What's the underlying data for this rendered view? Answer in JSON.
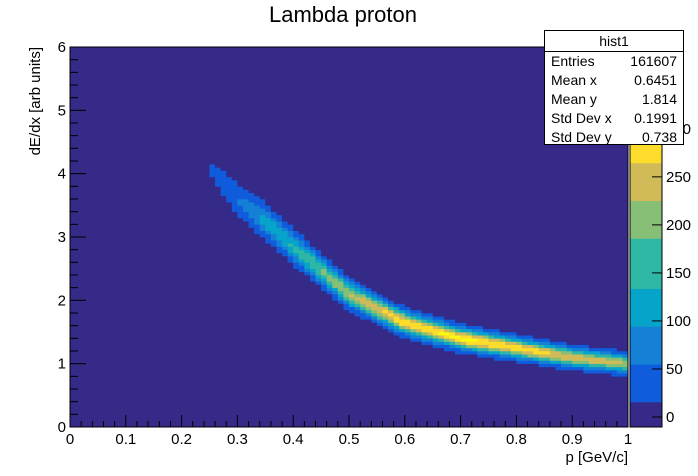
{
  "chart_data": {
    "type": "heatmap",
    "title": "Lambda proton",
    "xlabel": "p [GeV/c]",
    "ylabel": "dE/dx [arb units]",
    "xlim": [
      0,
      1
    ],
    "ylim": [
      0,
      6
    ],
    "x_ticks": [
      "0",
      "0.1",
      "0.2",
      "0.3",
      "0.4",
      "0.5",
      "0.6",
      "0.7",
      "0.8",
      "0.9",
      "1"
    ],
    "y_ticks": [
      "0",
      "1",
      "2",
      "3",
      "4",
      "5",
      "6"
    ],
    "colorbar": {
      "ticks": [
        "0",
        "50",
        "100",
        "150",
        "200",
        "250",
        "300"
      ],
      "max": 330,
      "colors": [
        "#352a87",
        "#0f5cdd",
        "#1481d6",
        "#06a4ca",
        "#2eb7a4",
        "#87bf77",
        "#d1bb59",
        "#fedc2b",
        "#f9fb0e"
      ]
    },
    "band": {
      "description_points_p": [
        0.25,
        0.3,
        0.35,
        0.4,
        0.5,
        0.6,
        0.7,
        0.8,
        0.9,
        1.0
      ],
      "peak_dEdx": [
        4.1,
        3.6,
        3.25,
        2.85,
        2.1,
        1.65,
        1.4,
        1.25,
        1.1,
        1.0
      ],
      "peak_counts": [
        20,
        60,
        120,
        150,
        230,
        300,
        320,
        290,
        260,
        230
      ]
    },
    "background_color": "#352a87"
  },
  "stats": {
    "name": "hist1",
    "rows": [
      {
        "label": "Entries",
        "value": "161607"
      },
      {
        "label": "Mean x",
        "value": "0.6451"
      },
      {
        "label": "Mean y",
        "value": "1.814"
      },
      {
        "label": "Std Dev x",
        "value": "0.1991"
      },
      {
        "label": "Std Dev y",
        "value": "0.738"
      }
    ]
  }
}
